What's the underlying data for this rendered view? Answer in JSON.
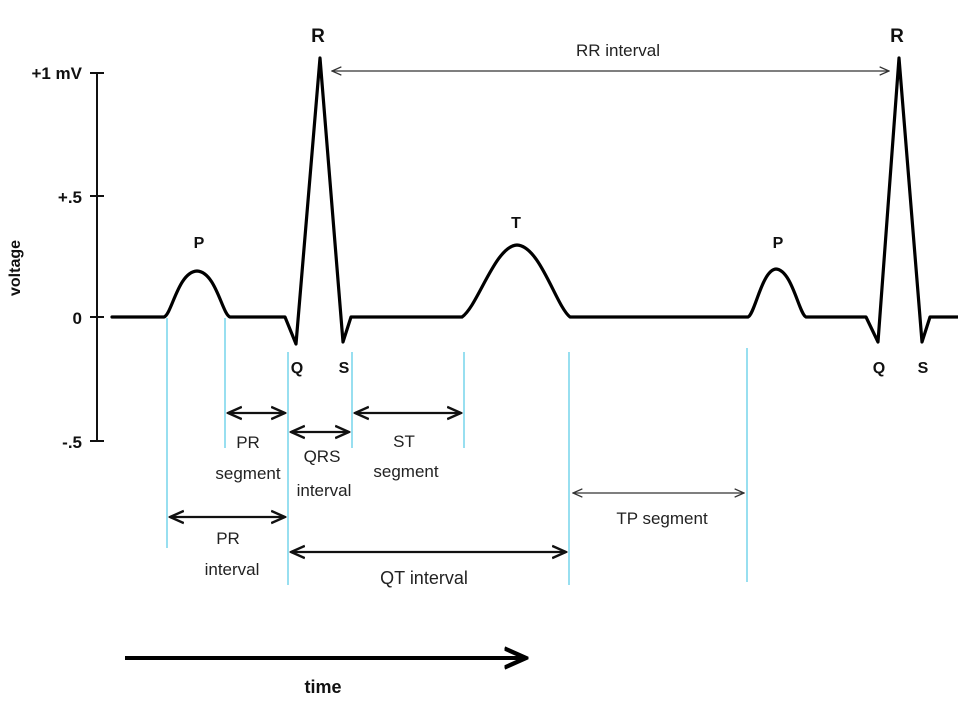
{
  "axis": {
    "ylabel": "voltage",
    "ticks": [
      "+1 mV",
      "+.5",
      "0",
      "-.5"
    ],
    "xlabel": "time"
  },
  "waves": {
    "p1": "P",
    "r1": "R",
    "q1": "Q",
    "s1": "S",
    "t": "T",
    "p2": "P",
    "r2": "R",
    "q2": "Q",
    "s2": "S"
  },
  "intervals": {
    "rr": "RR interval",
    "pr_segment": [
      "PR",
      "segment"
    ],
    "qrs_interval": [
      "QRS",
      "interval"
    ],
    "st_segment": [
      "ST",
      "segment"
    ],
    "pr_interval": [
      "PR",
      "interval"
    ],
    "qt": "QT interval",
    "tp": "TP segment"
  },
  "colors": {
    "trace": "#000000",
    "guide": "#7fd7ec",
    "text": "#222222"
  }
}
